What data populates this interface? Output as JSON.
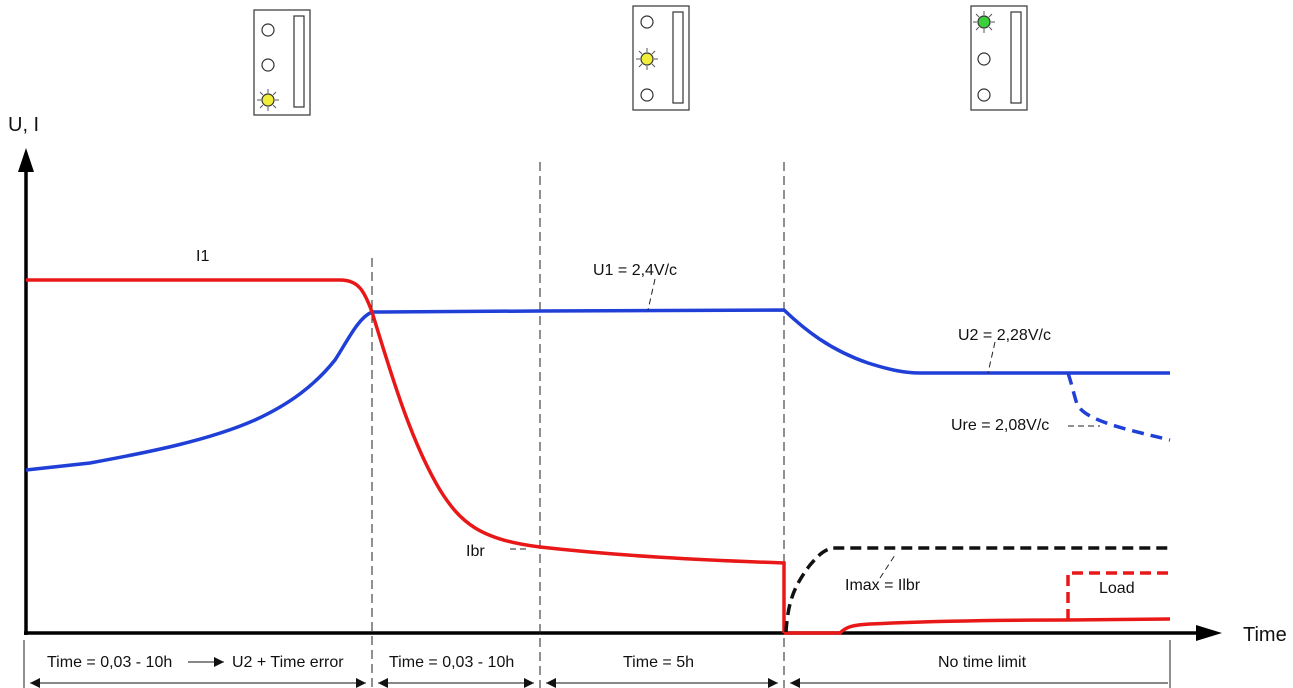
{
  "axes": {
    "y_label": "U, I",
    "x_label": "Time"
  },
  "curve_labels": {
    "i1": "I1",
    "u1": "U1 = 2,4V/c",
    "u2": "U2 = 2,28V/c",
    "ure": "Ure = 2,08V/c",
    "ibr": "Ibr",
    "imax": "Imax = Ilbr",
    "load": "Load"
  },
  "phases": [
    {
      "label": "Time = 0,03 - 10h",
      "arrow_target": "U2 + Time error"
    },
    {
      "label": "Time = 0,03 - 10h"
    },
    {
      "label": "Time = 5h"
    },
    {
      "label": "No time limit"
    }
  ],
  "indicator_panels": [
    {
      "lit_led": 3,
      "lit_color": "#f0ee3a"
    },
    {
      "lit_led": 2,
      "lit_color": "#f0ee3a"
    },
    {
      "lit_led": 1,
      "lit_color": "#3ccf3c"
    }
  ],
  "colors": {
    "voltage": "#1f3fd6",
    "current": "#e81818",
    "limit": "#111111",
    "axis": "#000000"
  },
  "icons": [
    "led-panel-icon",
    "led-icon",
    "up-arrow-icon",
    "right-arrow-icon"
  ]
}
